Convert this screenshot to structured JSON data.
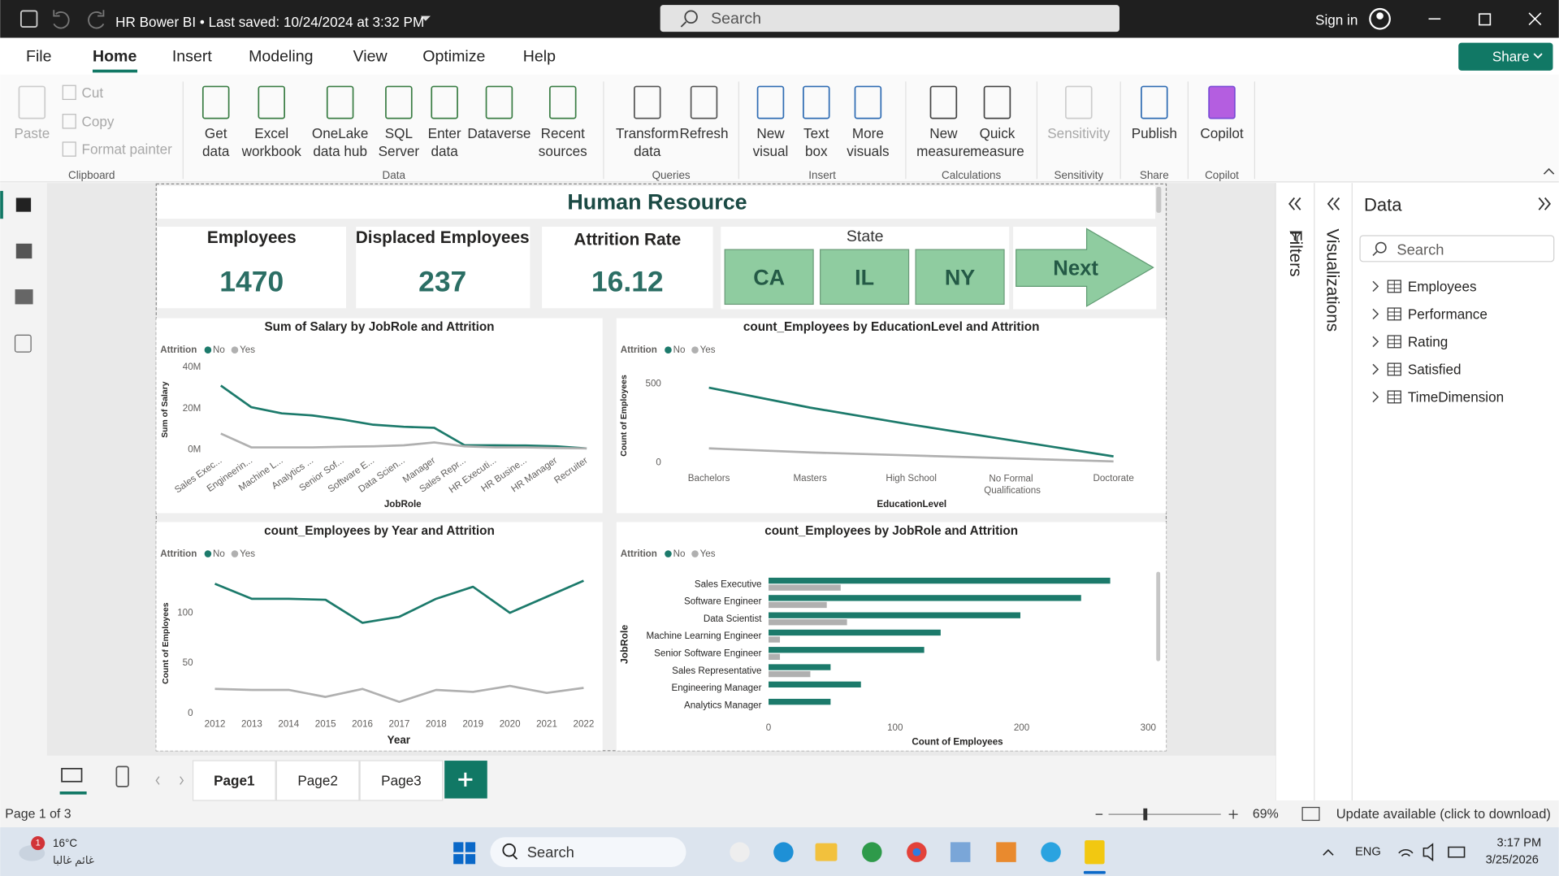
{
  "title_bar": {
    "document": "HR Bower BI • Last saved: 10/24/2024 at 3:32 PM",
    "search": "Search",
    "sign_in": "Sign in"
  },
  "menu": [
    "File",
    "Home",
    "Insert",
    "Modeling",
    "View",
    "Optimize",
    "Help"
  ],
  "share": "Share",
  "ribbon": [
    {
      "group": "Clipboard",
      "buttons": [
        [
          "Paste"
        ],
        [
          "Cut"
        ],
        [
          "Copy"
        ],
        [
          "Format painter"
        ]
      ]
    },
    {
      "group": "Data",
      "buttons": [
        [
          "Get",
          "data"
        ],
        [
          "Excel",
          "workbook"
        ],
        [
          "OneLake",
          "data hub"
        ],
        [
          "SQL",
          "Server"
        ],
        [
          "Enter",
          "data"
        ],
        [
          "Dataverse"
        ],
        [
          "Recent",
          "sources"
        ]
      ]
    },
    {
      "group": "Queries",
      "buttons": [
        [
          "Transform",
          "data"
        ],
        [
          "Refresh"
        ]
      ]
    },
    {
      "group": "Insert",
      "buttons": [
        [
          "New",
          "visual"
        ],
        [
          "Text",
          "box"
        ],
        [
          "More",
          "visuals"
        ]
      ]
    },
    {
      "group": "Calculations",
      "buttons": [
        [
          "New",
          "measure"
        ],
        [
          "Quick",
          "measure"
        ]
      ]
    },
    {
      "group": "Sensitivity",
      "buttons": [
        [
          "Sensitivity"
        ]
      ]
    },
    {
      "group": "Share",
      "buttons": [
        [
          "Publish"
        ]
      ]
    },
    {
      "group": "Copilot",
      "buttons": [
        [
          "Copilot"
        ]
      ]
    }
  ],
  "report": {
    "title": "Human Resource",
    "cards": [
      {
        "label": "Employees",
        "value": 1470
      },
      {
        "label": "Displaced Employees",
        "value": 237
      },
      {
        "label": "Attrition Rate",
        "value": 16.12
      }
    ],
    "slicer": {
      "title": "State",
      "options": [
        "CA",
        "IL",
        "NY"
      ]
    },
    "next_button": "Next"
  },
  "chart_data": [
    {
      "type": "line",
      "title": "Sum of Salary by JobRole and Attrition",
      "legend_title": "Attrition",
      "x_label": "JobRole",
      "y_label": "Sum of Salary",
      "categories": [
        "Sales Exec...",
        "Engineerin...",
        "Machine L...",
        "Analytics ...",
        "Senior Sof...",
        "Software E...",
        "Data Scien...",
        "Manager",
        "Sales Repr...",
        "HR Executi...",
        "HR Busine...",
        "HR Manager",
        "Recruiter"
      ],
      "series": [
        {
          "name": "No",
          "color": "#1c7a6b",
          "values": [
            31000000,
            20500000,
            17500000,
            16500000,
            14500000,
            12000000,
            11000000,
            10500000,
            2000000,
            2000000,
            1900000,
            1500000,
            500000
          ]
        },
        {
          "name": "Yes",
          "color": "#b0b0b0",
          "values": [
            7700000,
            1000000,
            1000000,
            1000000,
            1300000,
            1500000,
            2000000,
            3400000,
            1500000,
            1000000,
            1000000,
            700000,
            500000
          ]
        }
      ],
      "ylim": [
        0,
        42000000
      ],
      "yticks": [
        {
          "value": 0,
          "label": "0M"
        },
        {
          "value": 20000000,
          "label": "20M"
        },
        {
          "value": 40000000,
          "label": "40M"
        }
      ]
    },
    {
      "type": "line",
      "title": "count_Employees by EducationLevel and Attrition",
      "legend_title": "Attrition",
      "x_label": "EducationLevel",
      "y_label": "Count of Employees",
      "categories": [
        "Bachelors",
        "Masters",
        "High School",
        "No Formal Qualifications",
        "Doctorate"
      ],
      "series": [
        {
          "name": "No",
          "color": "#1c7a6b",
          "values": [
            475,
            348,
            240,
            139,
            38
          ]
        },
        {
          "name": "Yes",
          "color": "#b0b0b0",
          "values": [
            89,
            63,
            44,
            25,
            6
          ]
        }
      ],
      "ylim": [
        0,
        550
      ],
      "yticks": [
        0,
        500
      ]
    },
    {
      "type": "line",
      "title": "count_Employees by Year and Attrition",
      "legend_title": "Attrition",
      "x_label": "Year",
      "y_label": "Count of Employees",
      "x": [
        2012,
        2013,
        2014,
        2015,
        2016,
        2017,
        2018,
        2019,
        2020,
        2021,
        2022
      ],
      "series": [
        {
          "name": "No",
          "color": "#1c7a6b",
          "values": [
            129,
            114,
            114,
            113,
            90,
            96,
            114,
            126,
            100,
            116,
            132
          ]
        },
        {
          "name": "Yes",
          "color": "#b0b0b0",
          "values": [
            24,
            23,
            23,
            16,
            24,
            11,
            23,
            21,
            27,
            20,
            25
          ]
        }
      ],
      "xlim": [
        2011.6,
        2022.4
      ],
      "xticks": [
        2012,
        2013,
        2014,
        2015,
        2016,
        2017,
        2018,
        2019,
        2020,
        2021,
        2022
      ],
      "ylim": [
        0,
        140
      ],
      "yticks": [
        0,
        50,
        100
      ]
    },
    {
      "type": "bar",
      "orientation": "horizontal",
      "title": "count_Employees by JobRole and Attrition",
      "legend_title": "Attrition",
      "x_label": "Count of Employees",
      "y_label": "JobRole",
      "categories": [
        "Sales Executive",
        "Software Engineer",
        "Data Scientist",
        "Machine Learning Engineer",
        "Senior Software Engineer",
        "Sales Representative",
        "Engineering Manager",
        "Analytics Manager"
      ],
      "series": [
        {
          "name": "No",
          "color": "#1c7a6b",
          "values": [
            270,
            247,
            199,
            136,
            123,
            49,
            73,
            49
          ]
        },
        {
          "name": "Yes",
          "color": "#b0b0b0",
          "values": [
            57,
            46,
            62,
            9,
            9,
            33,
            0,
            0
          ]
        }
      ],
      "xlim": [
        0,
        310
      ],
      "xticks": [
        0,
        100,
        200,
        300
      ]
    }
  ],
  "panes": {
    "filters": "Filters",
    "visualizations": "Visualizations",
    "data": {
      "title": "Data",
      "search": "Search",
      "tables": [
        "Employees",
        "Performance",
        "Rating",
        "Satisfied",
        "TimeDimension"
      ]
    }
  },
  "pages": {
    "tabs": [
      "Page1",
      "Page2",
      "Page3"
    ],
    "status": "Page 1 of 3",
    "zoom": "69%",
    "update": "Update available (click to download)"
  },
  "taskbar": {
    "alerts": 1,
    "temperature": "16°C",
    "weather": "غائم غالبا",
    "search": "Search",
    "language": "ENG",
    "time": "3:17 PM",
    "date": "3/25/2026"
  }
}
